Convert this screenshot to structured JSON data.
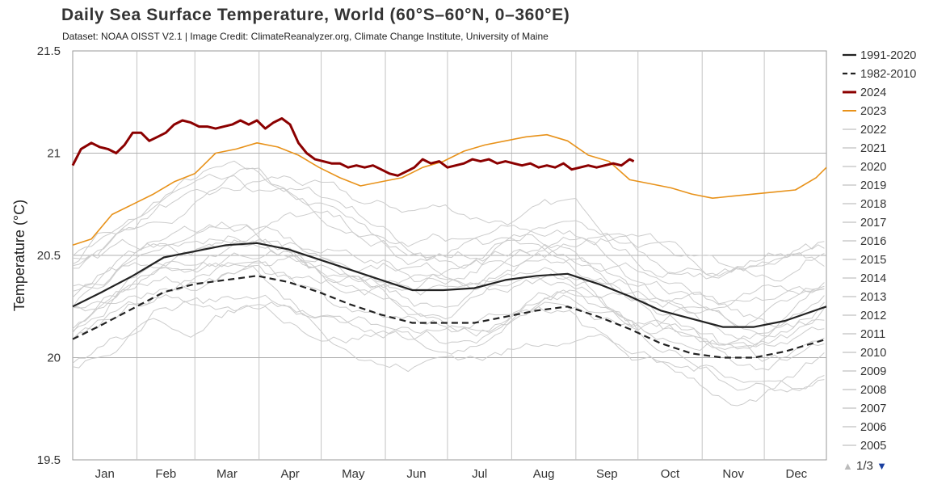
{
  "chart_data": {
    "type": "line",
    "title": "Daily Sea Surface Temperature, World (60°S–60°N, 0–360°E)",
    "subtitle": "Dataset: NOAA OISST V2.1 | Image Credit: ClimateReanalyzer.org, Climate Change Institute, University of Maine",
    "ylabel": "Temperature (°C)",
    "xlabel": "",
    "ylim": [
      19.5,
      21.5
    ],
    "yticks": [
      "21.5",
      "21",
      "20.5",
      "20",
      "19.5"
    ],
    "months": [
      "Jan",
      "Feb",
      "Mar",
      "Apr",
      "May",
      "Jun",
      "Jul",
      "Aug",
      "Sep",
      "Oct",
      "Nov",
      "Dec"
    ],
    "grid": true,
    "legend_position": "right",
    "colors": {
      "y2024": "#8b0000",
      "y2023": "#e8921a",
      "mean": "#222222",
      "past": "#cccccc"
    },
    "series": [
      {
        "name": "1991-2020",
        "style": "solid",
        "x": [
          1,
          15,
          30,
          45,
          60,
          75,
          90,
          105,
          120,
          135,
          150,
          165,
          180,
          195,
          210,
          225,
          240,
          255,
          270,
          285,
          300,
          315,
          330,
          345,
          365
        ],
        "values": [
          20.25,
          20.32,
          20.4,
          20.49,
          20.52,
          20.55,
          20.56,
          20.53,
          20.48,
          20.43,
          20.38,
          20.33,
          20.33,
          20.34,
          20.38,
          20.4,
          20.41,
          20.36,
          20.3,
          20.23,
          20.19,
          20.15,
          20.15,
          20.18,
          20.25
        ]
      },
      {
        "name": "1982-2010",
        "style": "dashed",
        "x": [
          1,
          15,
          30,
          45,
          60,
          75,
          90,
          105,
          120,
          135,
          150,
          165,
          180,
          195,
          210,
          225,
          240,
          255,
          270,
          285,
          300,
          315,
          330,
          345,
          365
        ],
        "values": [
          20.09,
          20.16,
          20.24,
          20.32,
          20.36,
          20.38,
          20.4,
          20.37,
          20.32,
          20.26,
          20.21,
          20.17,
          20.17,
          20.17,
          20.2,
          20.23,
          20.25,
          20.2,
          20.14,
          20.07,
          20.02,
          20.0,
          20.0,
          20.03,
          20.09
        ]
      },
      {
        "name": "2024",
        "style": "solid",
        "x": [
          1,
          5,
          10,
          14,
          18,
          22,
          26,
          30,
          34,
          38,
          42,
          46,
          50,
          54,
          58,
          62,
          66,
          70,
          74,
          78,
          82,
          86,
          90,
          94,
          98,
          102,
          106,
          110,
          114,
          118,
          122,
          126,
          130,
          134,
          138,
          142,
          146,
          150,
          154,
          158,
          162,
          166,
          170,
          174,
          178,
          182,
          186,
          190,
          194,
          198,
          202,
          206,
          210,
          214,
          218,
          222,
          226,
          230,
          234,
          238,
          242,
          246,
          250,
          254,
          258,
          262,
          266,
          270,
          272
        ],
        "values": [
          20.94,
          21.02,
          21.05,
          21.03,
          21.02,
          21.0,
          21.04,
          21.1,
          21.1,
          21.06,
          21.08,
          21.1,
          21.14,
          21.16,
          21.15,
          21.13,
          21.13,
          21.12,
          21.13,
          21.14,
          21.16,
          21.14,
          21.16,
          21.12,
          21.15,
          21.17,
          21.14,
          21.05,
          21.0,
          20.97,
          20.96,
          20.95,
          20.95,
          20.93,
          20.94,
          20.93,
          20.94,
          20.92,
          20.9,
          20.89,
          20.91,
          20.93,
          20.97,
          20.95,
          20.96,
          20.93,
          20.94,
          20.95,
          20.97,
          20.96,
          20.97,
          20.95,
          20.96,
          20.95,
          20.94,
          20.95,
          20.93,
          20.94,
          20.93,
          20.95,
          20.92,
          20.93,
          20.94,
          20.93,
          20.94,
          20.95,
          20.94,
          20.97,
          20.96
        ]
      },
      {
        "name": "2023",
        "style": "solid",
        "x": [
          1,
          10,
          20,
          30,
          40,
          50,
          60,
          70,
          80,
          90,
          100,
          110,
          120,
          130,
          140,
          150,
          160,
          170,
          180,
          190,
          200,
          210,
          220,
          230,
          240,
          250,
          260,
          270,
          280,
          290,
          300,
          310,
          320,
          330,
          340,
          350,
          360,
          365
        ],
        "values": [
          20.55,
          20.58,
          20.7,
          20.75,
          20.8,
          20.86,
          20.9,
          21.0,
          21.02,
          21.05,
          21.03,
          20.99,
          20.93,
          20.88,
          20.84,
          20.86,
          20.88,
          20.93,
          20.96,
          21.01,
          21.04,
          21.06,
          21.08,
          21.09,
          21.06,
          20.99,
          20.96,
          20.87,
          20.85,
          20.83,
          20.8,
          20.78,
          20.79,
          20.8,
          20.81,
          20.82,
          20.88,
          20.93
        ]
      }
    ],
    "legend": [
      "1991-2020",
      "1982-2010",
      "2024",
      "2023",
      "2022",
      "2021",
      "2020",
      "2019",
      "2018",
      "2017",
      "2016",
      "2015",
      "2014",
      "2013",
      "2012",
      "2011",
      "2010",
      "2009",
      "2008",
      "2007",
      "2006",
      "2005"
    ],
    "past_years": [
      "2022",
      "2021",
      "2020",
      "2019",
      "2018",
      "2017",
      "2016",
      "2015",
      "2014",
      "2013",
      "2012",
      "2011",
      "2010",
      "2009",
      "2008",
      "2007",
      "2006",
      "2005"
    ]
  },
  "pager": {
    "label": "1/3"
  }
}
